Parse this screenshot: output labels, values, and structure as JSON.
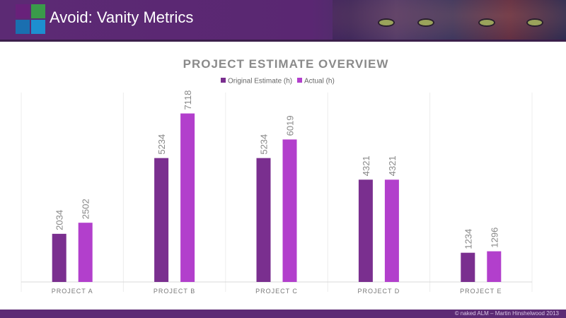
{
  "header": {
    "title": "Avoid: Vanity Metrics"
  },
  "footer": {
    "text": "© naked ALM – Martin Hinshelwood 2013"
  },
  "colors": {
    "header_bg": "#5c2a74",
    "series_original": "#7a2f8f",
    "series_actual": "#b23fcc"
  },
  "chart_data": {
    "type": "bar",
    "title": "PROJECT ESTIMATE OVERVIEW",
    "categories": [
      "PROJECT A",
      "PROJECT B",
      "PROJECT C",
      "PROJECT D",
      "PROJECT E"
    ],
    "series": [
      {
        "name": "Original Estimate (h)",
        "values": [
          2034,
          5234,
          5234,
          4321,
          1234
        ]
      },
      {
        "name": "Actual (h)",
        "values": [
          2502,
          7118,
          6019,
          4321,
          1296
        ]
      }
    ],
    "ylim": [
      0,
      8000
    ],
    "legend": "top",
    "grid": false
  }
}
